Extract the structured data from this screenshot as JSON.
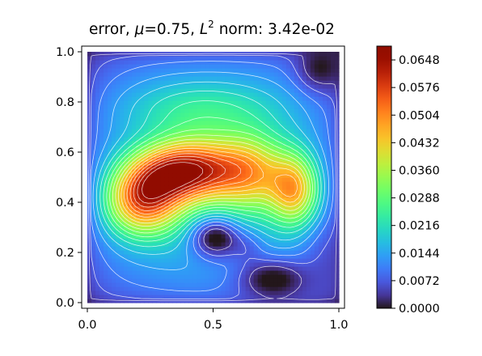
{
  "chart_data": {
    "type": "heatmap",
    "title": {
      "prefix": "error, ",
      "mu_symbol": "μ",
      "mu_value": "=0.75, ",
      "norm_symbol": "L",
      "norm_exponent": "2",
      "norm_suffix": " norm: 3.42e-02"
    },
    "xlabel": "",
    "ylabel": "",
    "xlim": [
      0.0,
      1.0
    ],
    "ylim": [
      0.0,
      1.0
    ],
    "x_ticks": [
      {
        "value": 0.0,
        "label": "0.0"
      },
      {
        "value": 0.5,
        "label": "0.5"
      },
      {
        "value": 1.0,
        "label": "1.0"
      }
    ],
    "y_ticks": [
      {
        "value": 0.0,
        "label": "0.0"
      },
      {
        "value": 0.2,
        "label": "0.2"
      },
      {
        "value": 0.4,
        "label": "0.4"
      },
      {
        "value": 0.6,
        "label": "0.6"
      },
      {
        "value": 0.8,
        "label": "0.8"
      },
      {
        "value": 1.0,
        "label": "1.0"
      }
    ],
    "colormap": "turbo",
    "colorbar": {
      "range": [
        0.0,
        0.0684
      ],
      "ticks": [
        {
          "value": 0.0,
          "label": "0.0000"
        },
        {
          "value": 0.0072,
          "label": "0.0072"
        },
        {
          "value": 0.0144,
          "label": "0.0144"
        },
        {
          "value": 0.0216,
          "label": "0.0216"
        },
        {
          "value": 0.0288,
          "label": "0.0288"
        },
        {
          "value": 0.036,
          "label": "0.0360"
        },
        {
          "value": 0.0432,
          "label": "0.0432"
        },
        {
          "value": 0.0504,
          "label": "0.0504"
        },
        {
          "value": 0.0576,
          "label": "0.0576"
        },
        {
          "value": 0.0648,
          "label": "0.0648"
        }
      ]
    },
    "contours": {
      "color": "#ffffff",
      "levels": 19
    },
    "field_features": [
      {
        "kind": "peak",
        "x": 0.21,
        "y": 0.4,
        "value": 0.066
      },
      {
        "kind": "peak",
        "x": 0.43,
        "y": 0.53,
        "value": 0.064
      },
      {
        "kind": "peak",
        "x": 0.83,
        "y": 0.44,
        "value": 0.058
      },
      {
        "kind": "local_min",
        "x": 0.51,
        "y": 0.26,
        "value": 0.01
      },
      {
        "kind": "local_min",
        "x": 0.74,
        "y": 0.09,
        "value": 0.004
      },
      {
        "kind": "local_min",
        "x": 0.93,
        "y": 0.94,
        "value": 0.002
      }
    ]
  }
}
